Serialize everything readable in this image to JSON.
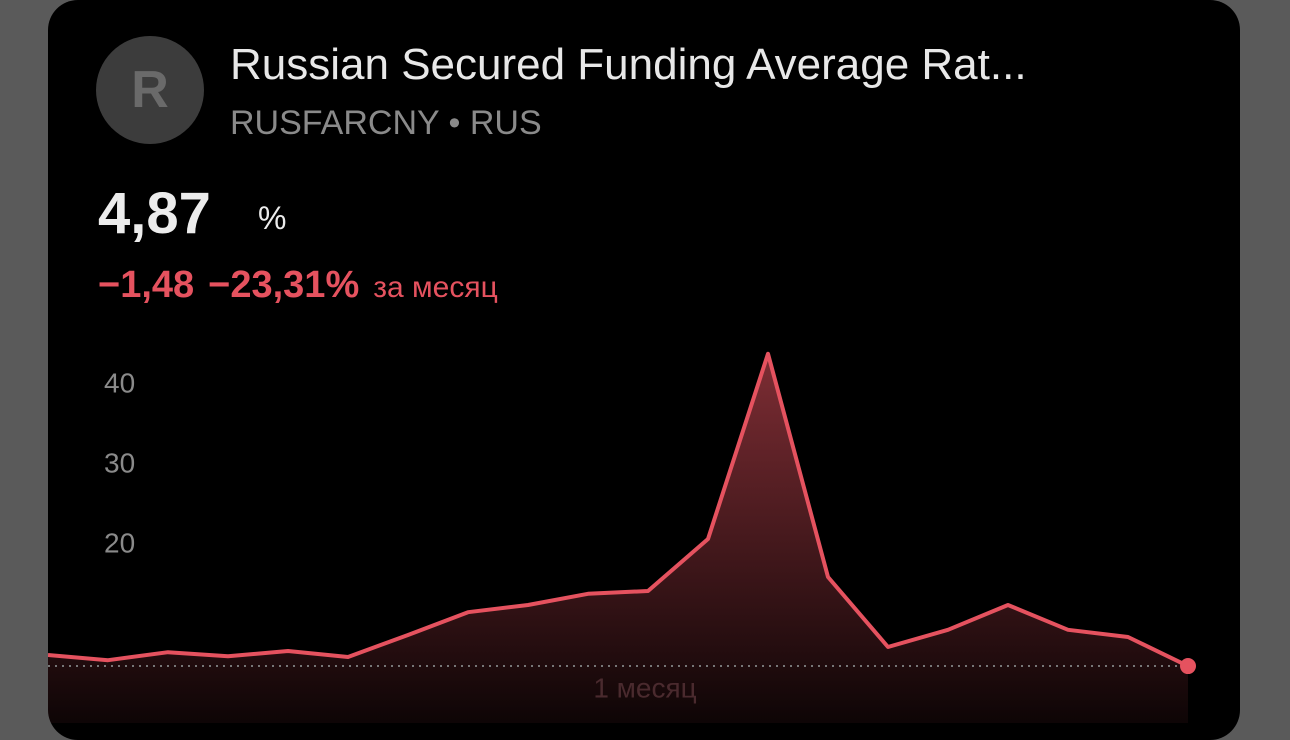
{
  "header": {
    "avatar_letter": "R",
    "title": "Russian Secured Funding Average Rat...",
    "subtitle": "RUSFARCNY • RUS"
  },
  "quote": {
    "price": "4,87",
    "unit": "%",
    "change": "−1,48",
    "change_percent": "−23,31%",
    "period": "за месяц"
  },
  "period_button": "1 месяц",
  "chart_data": {
    "type": "area",
    "color": "#e5525f",
    "values": [
      6.25,
      5.6,
      6.6,
      6.1,
      6.75,
      6.0,
      8.75,
      11.6,
      12.5,
      13.9,
      14.25,
      20.75,
      43.9,
      16.0,
      7.25,
      9.4,
      12.5,
      9.4,
      8.5,
      4.87
    ],
    "ylim": [
      -2,
      46
    ],
    "yticks": [
      20,
      30,
      40
    ]
  }
}
